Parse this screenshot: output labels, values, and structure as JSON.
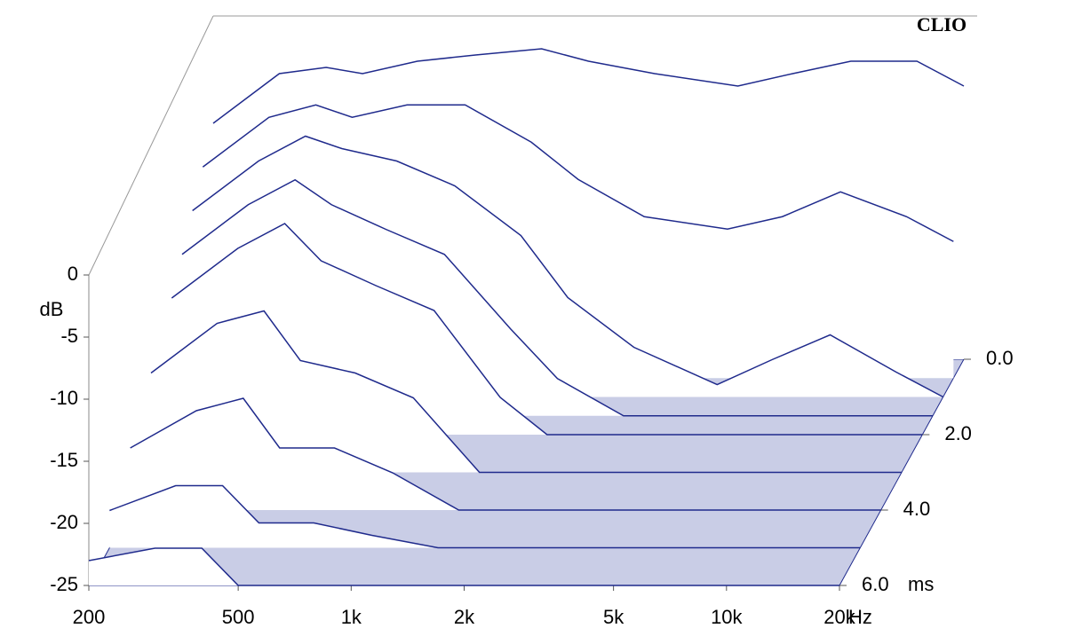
{
  "chart_data": {
    "type": "waterfall",
    "brand": "CLIO",
    "y_label": "dB",
    "x_label": "Hz",
    "z_label": "ms",
    "xscale": "log",
    "color": "#1f2a8c",
    "x": [
      200,
      300,
      400,
      500,
      700,
      1000,
      1500,
      2000,
      3000,
      5000,
      7000,
      10000,
      15000,
      20000
    ],
    "slices": [
      {
        "time": 0,
        "values": [
          -6,
          -2,
          -1.5,
          -2,
          -1,
          -0.5,
          0,
          -1,
          -2,
          -3,
          -2,
          -1,
          -1,
          -3
        ]
      },
      {
        "time": 0.5,
        "values": [
          -8,
          -4,
          -3,
          -4,
          -3,
          -3,
          -6,
          -9,
          -12,
          -13,
          -12,
          -10,
          -12,
          -14
        ]
      },
      {
        "time": 1,
        "values": [
          -10,
          -6,
          -4,
          -5,
          -6,
          -8,
          -12,
          -17,
          -21,
          -24,
          -22,
          -20,
          -23,
          -25
        ]
      },
      {
        "time": 1.5,
        "values": [
          -12,
          -8,
          -6,
          -8,
          -10,
          -12,
          -18,
          -22,
          -25,
          -25,
          -25,
          -25,
          -25,
          -25
        ]
      },
      {
        "time": 2,
        "values": [
          -14,
          -10,
          -8,
          -11,
          -13,
          -15,
          -22,
          -25,
          -25,
          -25,
          -25,
          -25,
          -25,
          -25
        ]
      },
      {
        "time": 3,
        "values": [
          -17,
          -13,
          -12,
          -16,
          -17,
          -19,
          -25,
          -25,
          -25,
          -25,
          -25,
          -25,
          -25,
          -25
        ]
      },
      {
        "time": 4,
        "values": [
          -20,
          -17,
          -16,
          -20,
          -20,
          -22,
          -25,
          -25,
          -25,
          -25,
          -25,
          -25,
          -25,
          -25
        ]
      },
      {
        "time": 5,
        "values": [
          -22,
          -20,
          -20,
          -23,
          -23,
          -24,
          -25,
          -25,
          -25,
          -25,
          -25,
          -25,
          -25,
          -25
        ]
      },
      {
        "time": 6,
        "values": [
          -23,
          -22,
          -22,
          -25,
          -25,
          -25,
          -25,
          -25,
          -25,
          -25,
          -25,
          -25,
          -25,
          -25
        ]
      }
    ],
    "xlim": [
      200,
      20000
    ],
    "xticks": [
      200,
      500,
      {
        "value": 1000,
        "label": "1k"
      },
      {
        "value": 2000,
        "label": "2k"
      },
      {
        "value": 5000,
        "label": "5k"
      },
      {
        "value": 10000,
        "label": "10k"
      },
      {
        "value": 20000,
        "label": "20k"
      }
    ],
    "ylim": [
      -25,
      0
    ],
    "yticks": [
      0,
      -5,
      -10,
      -15,
      -20,
      -25
    ],
    "zlim": [
      0,
      6
    ],
    "zticks": [
      {
        "value": 0,
        "label": "0.0"
      },
      {
        "value": 2,
        "label": "2.0"
      },
      {
        "value": 4,
        "label": "4.0"
      },
      {
        "value": 6,
        "label": "6.0"
      }
    ]
  }
}
